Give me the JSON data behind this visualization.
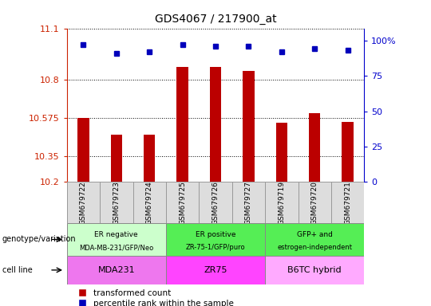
{
  "title": "GDS4067 / 217900_at",
  "samples": [
    "GSM679722",
    "GSM679723",
    "GSM679724",
    "GSM679725",
    "GSM679726",
    "GSM679727",
    "GSM679719",
    "GSM679720",
    "GSM679721"
  ],
  "red_values": [
    10.575,
    10.48,
    10.48,
    10.875,
    10.875,
    10.855,
    10.55,
    10.605,
    10.555
  ],
  "blue_values": [
    97,
    91,
    92,
    97,
    96,
    96,
    92,
    94,
    93
  ],
  "ymin": 10.2,
  "ymax": 11.1,
  "yticks_left": [
    10.2,
    10.35,
    10.575,
    10.8,
    11.1
  ],
  "yticks_right": [
    0,
    25,
    50,
    75,
    100
  ],
  "groups": [
    {
      "label": "ER negative\nMDA-MB-231/GFP/Neo",
      "cell_line": "MDA231",
      "color_geno": "#ccffcc",
      "color_cell": "#ee77ee",
      "start": 0,
      "end": 3
    },
    {
      "label": "ER positive\nZR-75-1/GFP/puro",
      "cell_line": "ZR75",
      "color_geno": "#55ee55",
      "color_cell": "#ff44ff",
      "start": 3,
      "end": 6
    },
    {
      "label": "GFP+ and\nestrogen-independent",
      "cell_line": "B6TC hybrid",
      "color_geno": "#55ee55",
      "color_cell": "#ffaaff",
      "start": 6,
      "end": 9
    }
  ],
  "bar_color": "#bb0000",
  "dot_color": "#0000bb",
  "left_tick_color": "#cc2200",
  "right_tick_color": "#0000cc",
  "legend_red": "transformed count",
  "legend_blue": "percentile rank within the sample",
  "label_geno": "genotype/variation",
  "label_cell": "cell line",
  "sample_box_color": "#dddddd",
  "sample_box_edge": "#999999"
}
